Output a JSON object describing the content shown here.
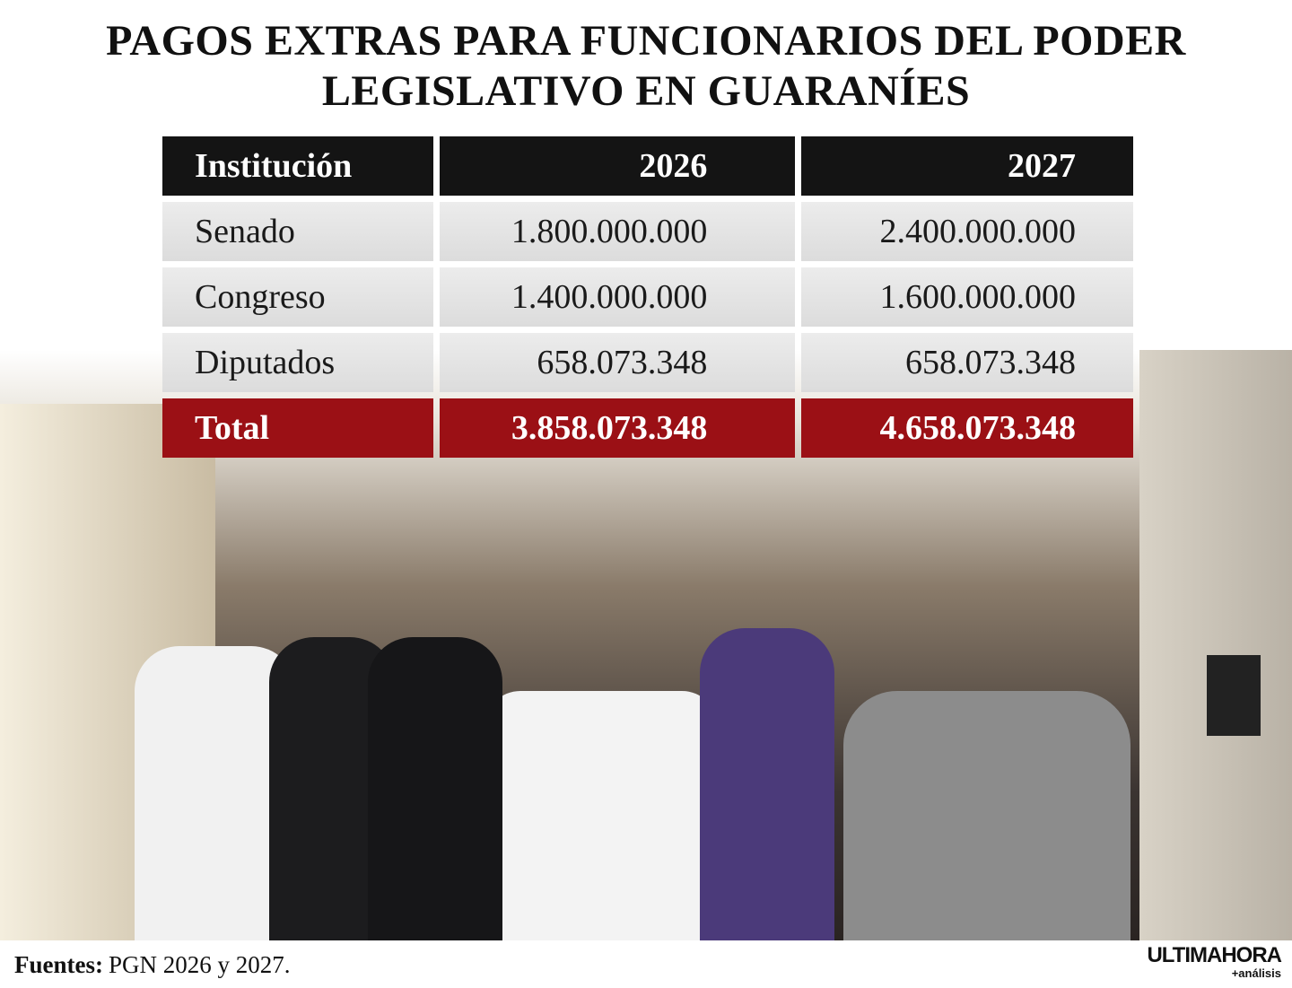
{
  "header": {
    "title_lines": [
      "PAGOS EXTRAS PARA FUNCIONARIOS DEL PODER",
      "LEGISLATIVO EN GUARANÍES"
    ]
  },
  "table": {
    "columns": [
      "Institución",
      "2026",
      "2027"
    ],
    "rows": [
      [
        "Senado",
        "1.800.000.000",
        "2.400.000.000"
      ],
      [
        "Congreso",
        "1.400.000.000",
        "1.600.000.000"
      ],
      [
        "Diputados",
        "658.073.348",
        "658.073.348"
      ]
    ],
    "total": [
      "Total",
      "3.858.073.348",
      "4.658.073.348"
    ]
  },
  "footer": {
    "source_label": "Fuentes:",
    "source_text": "PGN 2026 y 2027."
  },
  "logo": {
    "name": "ULTIMAHORA",
    "tagline": "+análisis"
  }
}
